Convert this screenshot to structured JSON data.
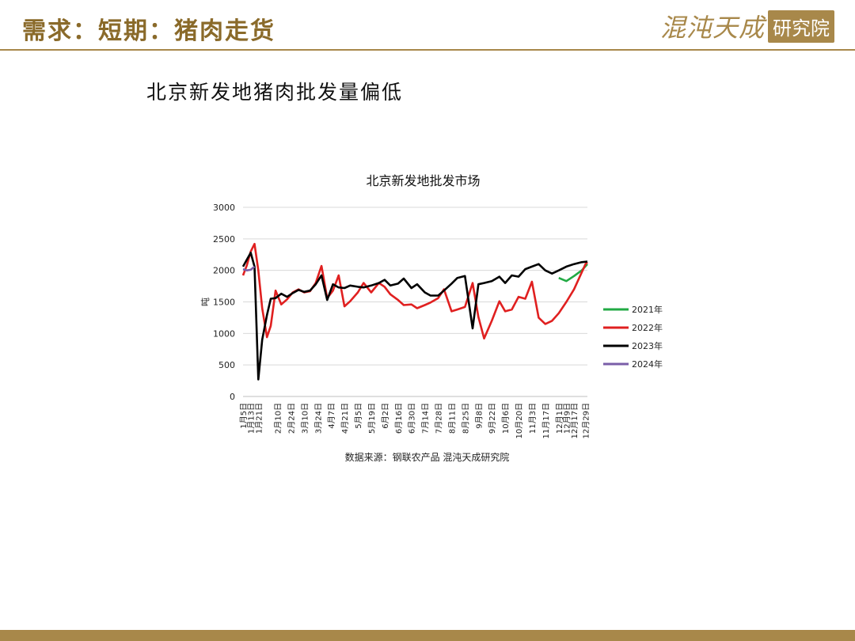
{
  "header": {
    "title": "需求：短期：猪肉走货",
    "logo_script": "混沌天成",
    "logo_box": "研究院"
  },
  "slide": {
    "heading": "北京新发地猪肉批发量偏低",
    "source": "数据来源：钢联农产品 混沌天成研究院"
  },
  "colors": {
    "accent": "#a8884a",
    "title": "#8a6a2a"
  },
  "chart_data": {
    "type": "line",
    "title": "北京新发地批发市场",
    "ylabel": "吨",
    "ylim": [
      0,
      3000
    ],
    "yticks": [
      0,
      500,
      1000,
      1500,
      2000,
      2500,
      3000
    ],
    "x_range": [
      "1月5日",
      "12月31日"
    ],
    "xticks": [
      "1月5日",
      "1月13日",
      "1月21日",
      "2月10日",
      "2月24日",
      "3月10日",
      "3月24日",
      "4月7日",
      "4月21日",
      "5月5日",
      "5月19日",
      "6月2日",
      "6月16日",
      "6月30日",
      "7月14日",
      "7月28日",
      "8月11日",
      "8月25日",
      "9月8日",
      "9月22日",
      "10月6日",
      "10月20日",
      "11月3日",
      "11月17日",
      "12月1日",
      "12月9日",
      "12月17日",
      "12月29日"
    ],
    "grid": true,
    "legend_position": "right",
    "series": [
      {
        "name": "2021年",
        "color": "#22aa44",
        "points": [
          [
            "12月1日",
            1880
          ],
          [
            "12月9日",
            1830
          ],
          [
            "12月17日",
            1910
          ],
          [
            "12月25日",
            2000
          ],
          [
            "12月31日",
            2100
          ]
        ]
      },
      {
        "name": "2022年",
        "color": "#e02020",
        "points": [
          [
            "1月5日",
            1920
          ],
          [
            "1月9日",
            2080
          ],
          [
            "1月13日",
            2300
          ],
          [
            "1月17日",
            2420
          ],
          [
            "1月21日",
            2000
          ],
          [
            "1月25日",
            1400
          ],
          [
            "1月30日",
            940
          ],
          [
            "2月3日",
            1120
          ],
          [
            "2月8日",
            1680
          ],
          [
            "2月14日",
            1460
          ],
          [
            "2月20日",
            1540
          ],
          [
            "2月26日",
            1650
          ],
          [
            "3月4日",
            1700
          ],
          [
            "3月10日",
            1650
          ],
          [
            "3月16日",
            1670
          ],
          [
            "3月22日",
            1800
          ],
          [
            "3月28日",
            2070
          ],
          [
            "4月3日",
            1560
          ],
          [
            "4月9日",
            1680
          ],
          [
            "4月15日",
            1920
          ],
          [
            "4月21日",
            1430
          ],
          [
            "4月27日",
            1510
          ],
          [
            "5月5日",
            1650
          ],
          [
            "5月11日",
            1800
          ],
          [
            "5月19日",
            1650
          ],
          [
            "5月27日",
            1800
          ],
          [
            "6月2日",
            1740
          ],
          [
            "6月8日",
            1620
          ],
          [
            "6月16日",
            1530
          ],
          [
            "6月22日",
            1450
          ],
          [
            "6月30日",
            1460
          ],
          [
            "7月6日",
            1400
          ],
          [
            "7月14日",
            1450
          ],
          [
            "7月20日",
            1490
          ],
          [
            "7月28日",
            1560
          ],
          [
            "8月3日",
            1700
          ],
          [
            "8月11日",
            1350
          ],
          [
            "8月17日",
            1380
          ],
          [
            "8月25日",
            1420
          ],
          [
            "9月2日",
            1800
          ],
          [
            "9月8日",
            1260
          ],
          [
            "9月14日",
            920
          ],
          [
            "9月22日",
            1200
          ],
          [
            "9月30日",
            1510
          ],
          [
            "10月6日",
            1350
          ],
          [
            "10月13日",
            1380
          ],
          [
            "10月20日",
            1580
          ],
          [
            "10月27日",
            1550
          ],
          [
            "11月3日",
            1820
          ],
          [
            "11月10日",
            1250
          ],
          [
            "11月17日",
            1150
          ],
          [
            "11月24日",
            1200
          ],
          [
            "12月1日",
            1320
          ],
          [
            "12月9日",
            1500
          ],
          [
            "12月17日",
            1700
          ],
          [
            "12月29日",
            2100
          ],
          [
            "12月31日",
            2130
          ]
        ]
      },
      {
        "name": "2023年",
        "color": "#000000",
        "points": [
          [
            "1月5日",
            2060
          ],
          [
            "1月9日",
            2170
          ],
          [
            "1月13日",
            2280
          ],
          [
            "1月17日",
            2060
          ],
          [
            "1月21日",
            270
          ],
          [
            "1月25日",
            900
          ],
          [
            "1月30日",
            1290
          ],
          [
            "2月3日",
            1550
          ],
          [
            "2月8日",
            1560
          ],
          [
            "2月14日",
            1630
          ],
          [
            "2月20日",
            1580
          ],
          [
            "2月26日",
            1640
          ],
          [
            "3月4日",
            1690
          ],
          [
            "3月10日",
            1660
          ],
          [
            "3月16日",
            1680
          ],
          [
            "3月22日",
            1780
          ],
          [
            "3月28日",
            1920
          ],
          [
            "4月3日",
            1530
          ],
          [
            "4月9日",
            1780
          ],
          [
            "4月15日",
            1730
          ],
          [
            "4月21日",
            1720
          ],
          [
            "4月27日",
            1760
          ],
          [
            "5月5日",
            1740
          ],
          [
            "5月11日",
            1730
          ],
          [
            "5月19日",
            1760
          ],
          [
            "5月27日",
            1800
          ],
          [
            "6月2日",
            1850
          ],
          [
            "6月8日",
            1760
          ],
          [
            "6月16日",
            1790
          ],
          [
            "6月22日",
            1870
          ],
          [
            "6月30日",
            1720
          ],
          [
            "7月6日",
            1780
          ],
          [
            "7月14日",
            1650
          ],
          [
            "7月20日",
            1600
          ],
          [
            "7月28日",
            1600
          ],
          [
            "8月3日",
            1680
          ],
          [
            "8月11日",
            1790
          ],
          [
            "8月17日",
            1880
          ],
          [
            "8月25日",
            1910
          ],
          [
            "9月2日",
            1080
          ],
          [
            "9月8日",
            1780
          ],
          [
            "9月14日",
            1800
          ],
          [
            "9月22日",
            1830
          ],
          [
            "9月30日",
            1900
          ],
          [
            "10月6日",
            1800
          ],
          [
            "10月13日",
            1920
          ],
          [
            "10月20日",
            1900
          ],
          [
            "10月27日",
            2020
          ],
          [
            "11月3日",
            2060
          ],
          [
            "11月10日",
            2100
          ],
          [
            "11月17日",
            2000
          ],
          [
            "11月24日",
            1950
          ],
          [
            "12月1日",
            2000
          ],
          [
            "12月9日",
            2060
          ],
          [
            "12月17日",
            2100
          ],
          [
            "12月25日",
            2130
          ],
          [
            "12月31日",
            2140
          ]
        ]
      },
      {
        "name": "2024年",
        "color": "#7a5ea8",
        "points": [
          [
            "1月5日",
            2020
          ],
          [
            "1月9日",
            2000
          ],
          [
            "1月13日",
            2010
          ],
          [
            "1月17日",
            2060
          ]
        ]
      }
    ]
  }
}
